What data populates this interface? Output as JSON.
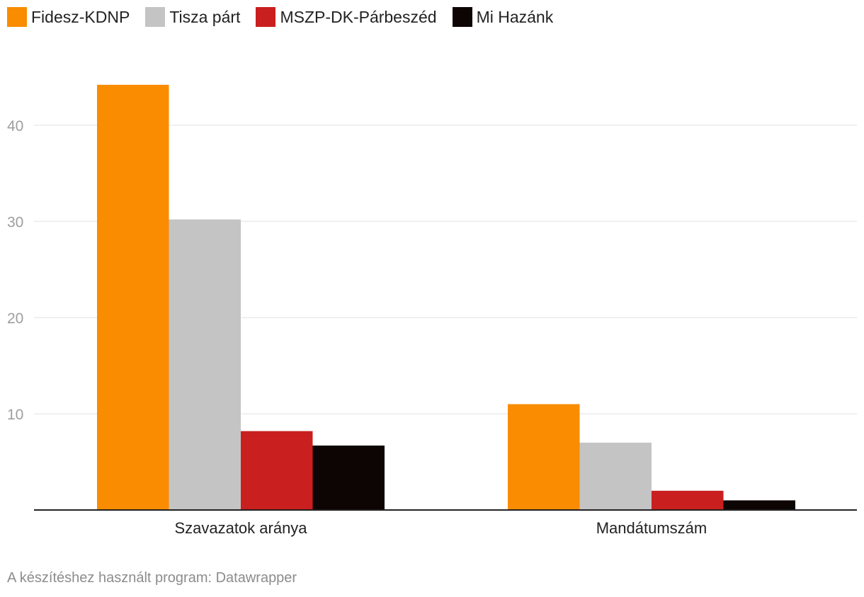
{
  "chart_data": {
    "type": "bar",
    "categories": [
      "Szavazatok aránya",
      "Mandátumszám"
    ],
    "series": [
      {
        "name": "Fidesz-KDNP",
        "color": "#f98c00",
        "values": [
          44.2,
          11
        ]
      },
      {
        "name": "Tisza párt",
        "color": "#c4c4c4",
        "values": [
          30.2,
          7
        ]
      },
      {
        "name": "MSZP-DK-Párbeszéd",
        "color": "#c91f1f",
        "values": [
          8.2,
          2
        ]
      },
      {
        "name": "Mi Hazánk",
        "color": "#0d0404",
        "values": [
          6.7,
          1
        ]
      }
    ],
    "yticks": [
      10,
      20,
      30,
      40
    ],
    "ylim": [
      0,
      45
    ],
    "grid": true,
    "legend": "top-left"
  },
  "footer": "A készítéshez használt program: Datawrapper"
}
